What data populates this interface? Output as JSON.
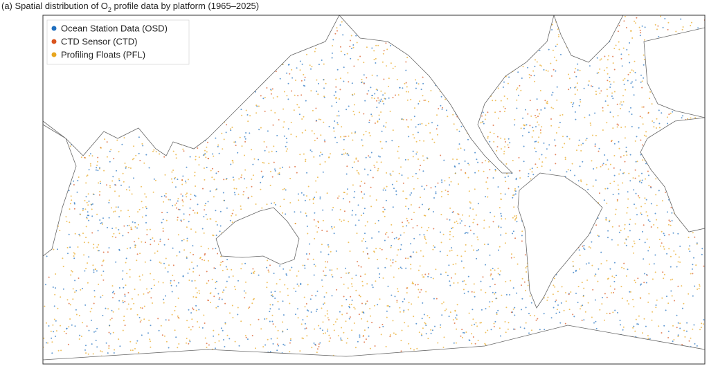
{
  "map": {
    "title": {
      "prefix": "(a) Spatial distribution of O",
      "subscript": "2",
      "suffix": " profile data by platform (1965–2025)"
    },
    "legend": [
      {
        "name": "Ocean Station Data (OSD)",
        "color": "#1f6fbf"
      },
      {
        "name": "CTD Sensor (CTD)",
        "color": "#d9541e"
      },
      {
        "name": "Profiling Floats (PFL)",
        "color": "#e8a61f"
      }
    ]
  }
}
